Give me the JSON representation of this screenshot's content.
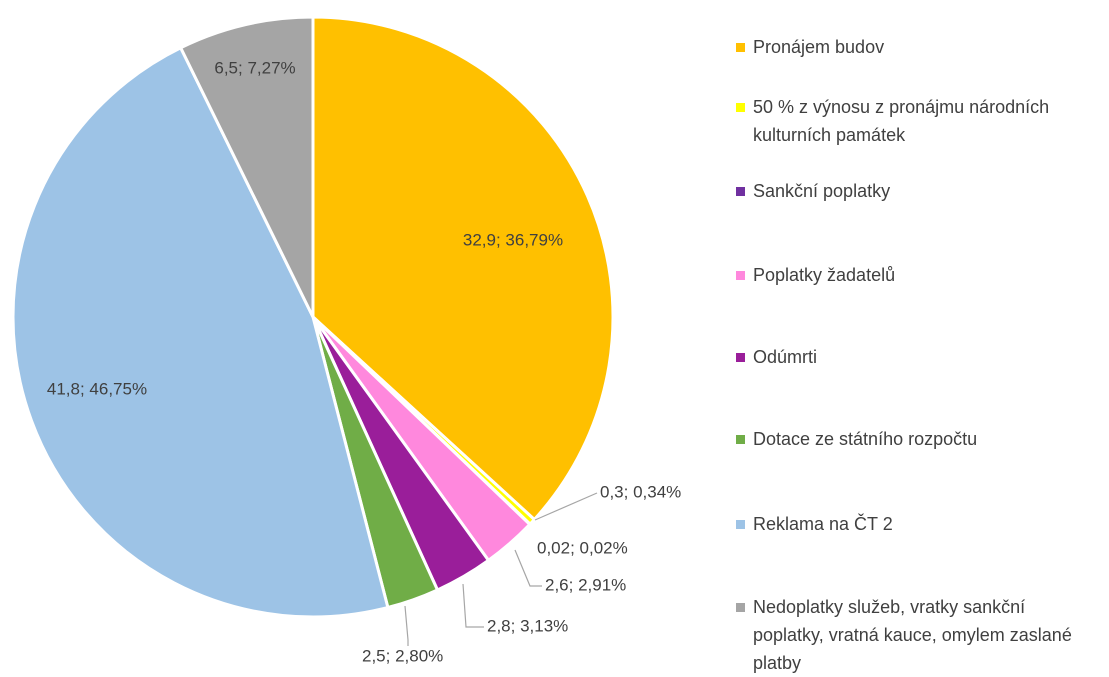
{
  "chart_data": {
    "type": "pie",
    "categories": [
      "Pronájem budov",
      "50 % z výnosu z pronájmu národních kulturních památek",
      "Sankční poplatky",
      "Poplatky žadatelů",
      "Odúmrti",
      "Dotace ze státního rozpočtu",
      "Reklama na ČT 2",
      "Nedoplatky služeb, vratky sankční poplatky, vratná kauce, omylem zaslané platby"
    ],
    "values": [
      32.9,
      0.3,
      0.02,
      2.6,
      2.8,
      2.5,
      41.8,
      6.5
    ],
    "value_labels": [
      "32,9; 36,79%",
      "0,3; 0,34%",
      "0,02; 0,02%",
      "2,6; 2,91%",
      "2,8; 3,13%",
      "2,5; 2,80%",
      "41,8; 46,75%",
      "6,5; 7,27%"
    ],
    "colors": [
      "#FFC000",
      "#FFFF00",
      "#7030A0",
      "#FF88DD",
      "#9A1E9A",
      "#70AD47",
      "#9DC3E6",
      "#A5A5A5"
    ],
    "legend": "right"
  }
}
